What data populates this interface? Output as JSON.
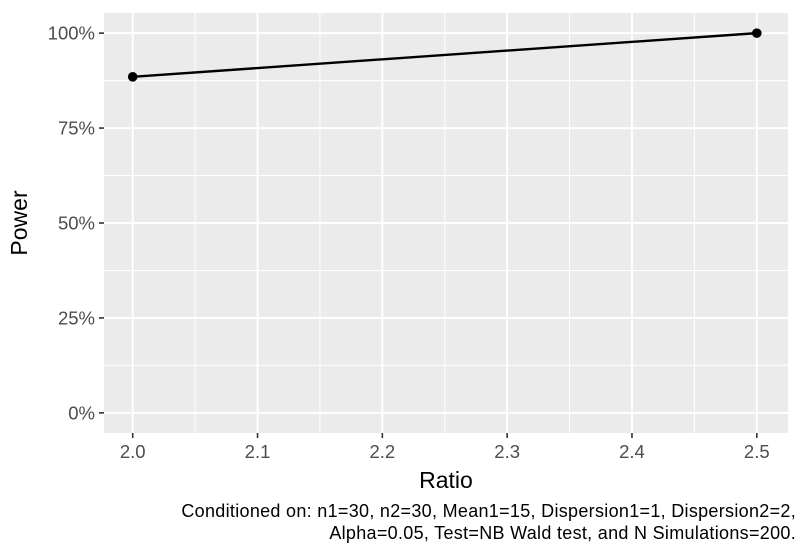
{
  "chart_data": {
    "type": "line",
    "title": "",
    "xlabel": "Ratio",
    "ylabel": "Power",
    "series": [
      {
        "name": "Power",
        "color": "#000000",
        "points": [
          {
            "x": 2.0,
            "y": 88.5
          },
          {
            "x": 2.5,
            "y": 100
          }
        ]
      }
    ],
    "x_ticks": {
      "values": [
        2.0,
        2.1,
        2.2,
        2.3,
        2.4,
        2.5
      ],
      "labels": [
        "2.0",
        "2.1",
        "2.2",
        "2.3",
        "2.4",
        "2.5"
      ]
    },
    "y_ticks": {
      "values": [
        0,
        25,
        50,
        75,
        100
      ],
      "labels": [
        "0%",
        "25%",
        "50%",
        "75%",
        "100%"
      ]
    },
    "x_minor": [
      2.05,
      2.15,
      2.25,
      2.35,
      2.45
    ],
    "y_minor": [
      12.5,
      37.5,
      62.5,
      87.5
    ],
    "xlim": [
      1.977,
      2.525
    ],
    "ylim": [
      -5.3,
      105.3
    ],
    "y_unit": "%",
    "grid": "on",
    "legend": "none",
    "style": {
      "panel_bg": "#EBEBEB",
      "grid_color": "#FFFFFF",
      "line_color": "#000000",
      "point_color": "#000000",
      "tick_mark_color": "#333333",
      "tick_label_color": "#4D4D4D",
      "axis_title_color": "#000000",
      "background": "#FFFFFF"
    }
  },
  "caption": {
    "line1": "Conditioned on: n1=30, n2=30, Mean1=15, Dispersion1=1, Dispersion2=2,",
    "line2": "Alpha=0.05, Test=NB Wald test, and N Simulations=200."
  }
}
